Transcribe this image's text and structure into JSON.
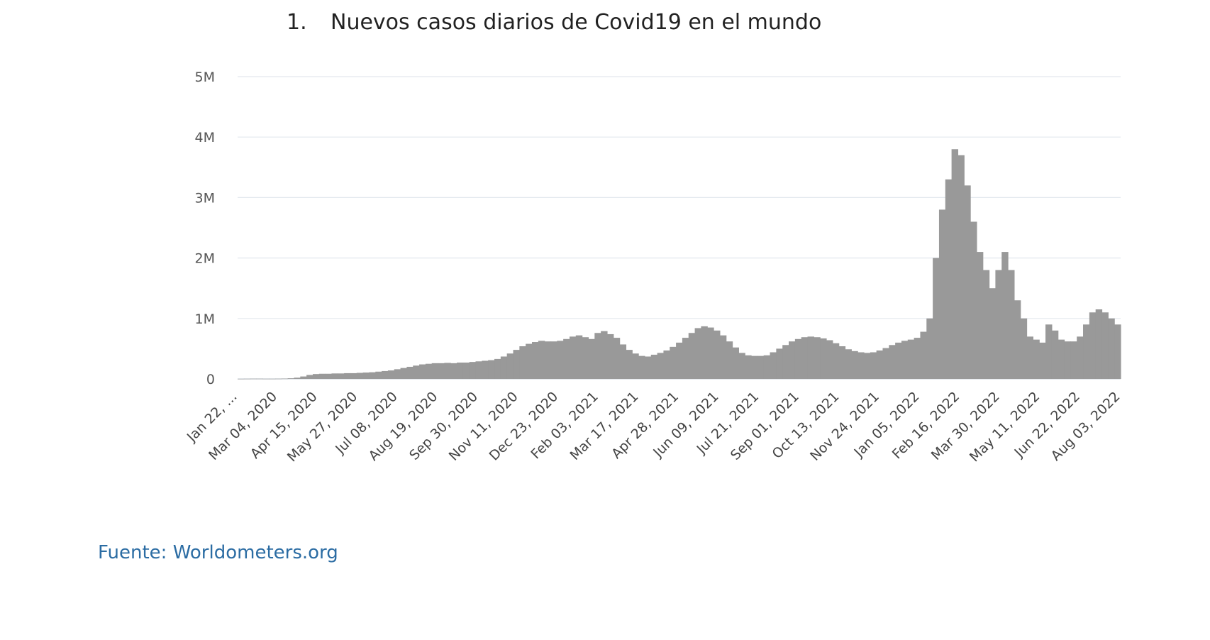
{
  "title": {
    "number": "1.",
    "text": "Nuevos casos diarios de Covid19 en el mundo"
  },
  "source": "Fuente: Worldometers.org",
  "chart_data": {
    "type": "bar",
    "ylim": [
      0,
      5000000
    ],
    "yticks": [
      {
        "value": 0,
        "label": "0"
      },
      {
        "value": 1000000,
        "label": "1M"
      },
      {
        "value": 2000000,
        "label": "2M"
      },
      {
        "value": 3000000,
        "label": "3M"
      },
      {
        "value": 4000000,
        "label": "4M"
      },
      {
        "value": 5000000,
        "label": "5M"
      }
    ],
    "xticks": [
      "Jan 22, ...",
      "Mar 04, 2020",
      "Apr 15, 2020",
      "May 27, 2020",
      "Jul 08, 2020",
      "Aug 19, 2020",
      "Sep 30, 2020",
      "Nov 11, 2020",
      "Dec 23, 2020",
      "Feb 03, 2021",
      "Mar 17, 2021",
      "Apr 28, 2021",
      "Jun 09, 2021",
      "Jul 21, 2021",
      "Sep 01, 2021",
      "Oct 13, 2021",
      "Nov 24, 2021",
      "Jan 05, 2022",
      "Feb 16, 2022",
      "Mar 30, 2022",
      "May 11, 2022",
      "Jun 22, 2022",
      "Aug 03, 2022"
    ],
    "series": [
      {
        "color": "#999999",
        "start_date": "2020-01-22",
        "interval_days": 7,
        "values": [
          1000,
          2000,
          3000,
          3000,
          2000,
          2000,
          3000,
          5000,
          10000,
          20000,
          40000,
          65000,
          80000,
          85000,
          85000,
          90000,
          90000,
          95000,
          95000,
          100000,
          105000,
          110000,
          120000,
          130000,
          140000,
          160000,
          180000,
          200000,
          220000,
          240000,
          250000,
          260000,
          260000,
          265000,
          260000,
          270000,
          270000,
          280000,
          290000,
          300000,
          310000,
          330000,
          370000,
          420000,
          480000,
          540000,
          580000,
          610000,
          630000,
          620000,
          620000,
          630000,
          660000,
          700000,
          720000,
          690000,
          660000,
          760000,
          790000,
          740000,
          680000,
          570000,
          480000,
          420000,
          380000,
          370000,
          400000,
          430000,
          470000,
          530000,
          600000,
          680000,
          760000,
          840000,
          870000,
          850000,
          800000,
          720000,
          620000,
          520000,
          430000,
          390000,
          380000,
          380000,
          390000,
          440000,
          500000,
          560000,
          620000,
          660000,
          690000,
          700000,
          690000,
          670000,
          640000,
          590000,
          540000,
          490000,
          460000,
          440000,
          430000,
          440000,
          470000,
          510000,
          560000,
          600000,
          630000,
          650000,
          680000,
          780000,
          1000000,
          2000000,
          2800000,
          3300000,
          3800000,
          3700000,
          3200000,
          2600000,
          2100000,
          1800000,
          1500000,
          1800000,
          2100000,
          1800000,
          1300000,
          1000000,
          700000,
          650000,
          600000,
          900000,
          800000,
          650000,
          620000,
          620000,
          700000,
          900000,
          1100000,
          1150000,
          1100000,
          1000000,
          900000
        ]
      }
    ]
  }
}
